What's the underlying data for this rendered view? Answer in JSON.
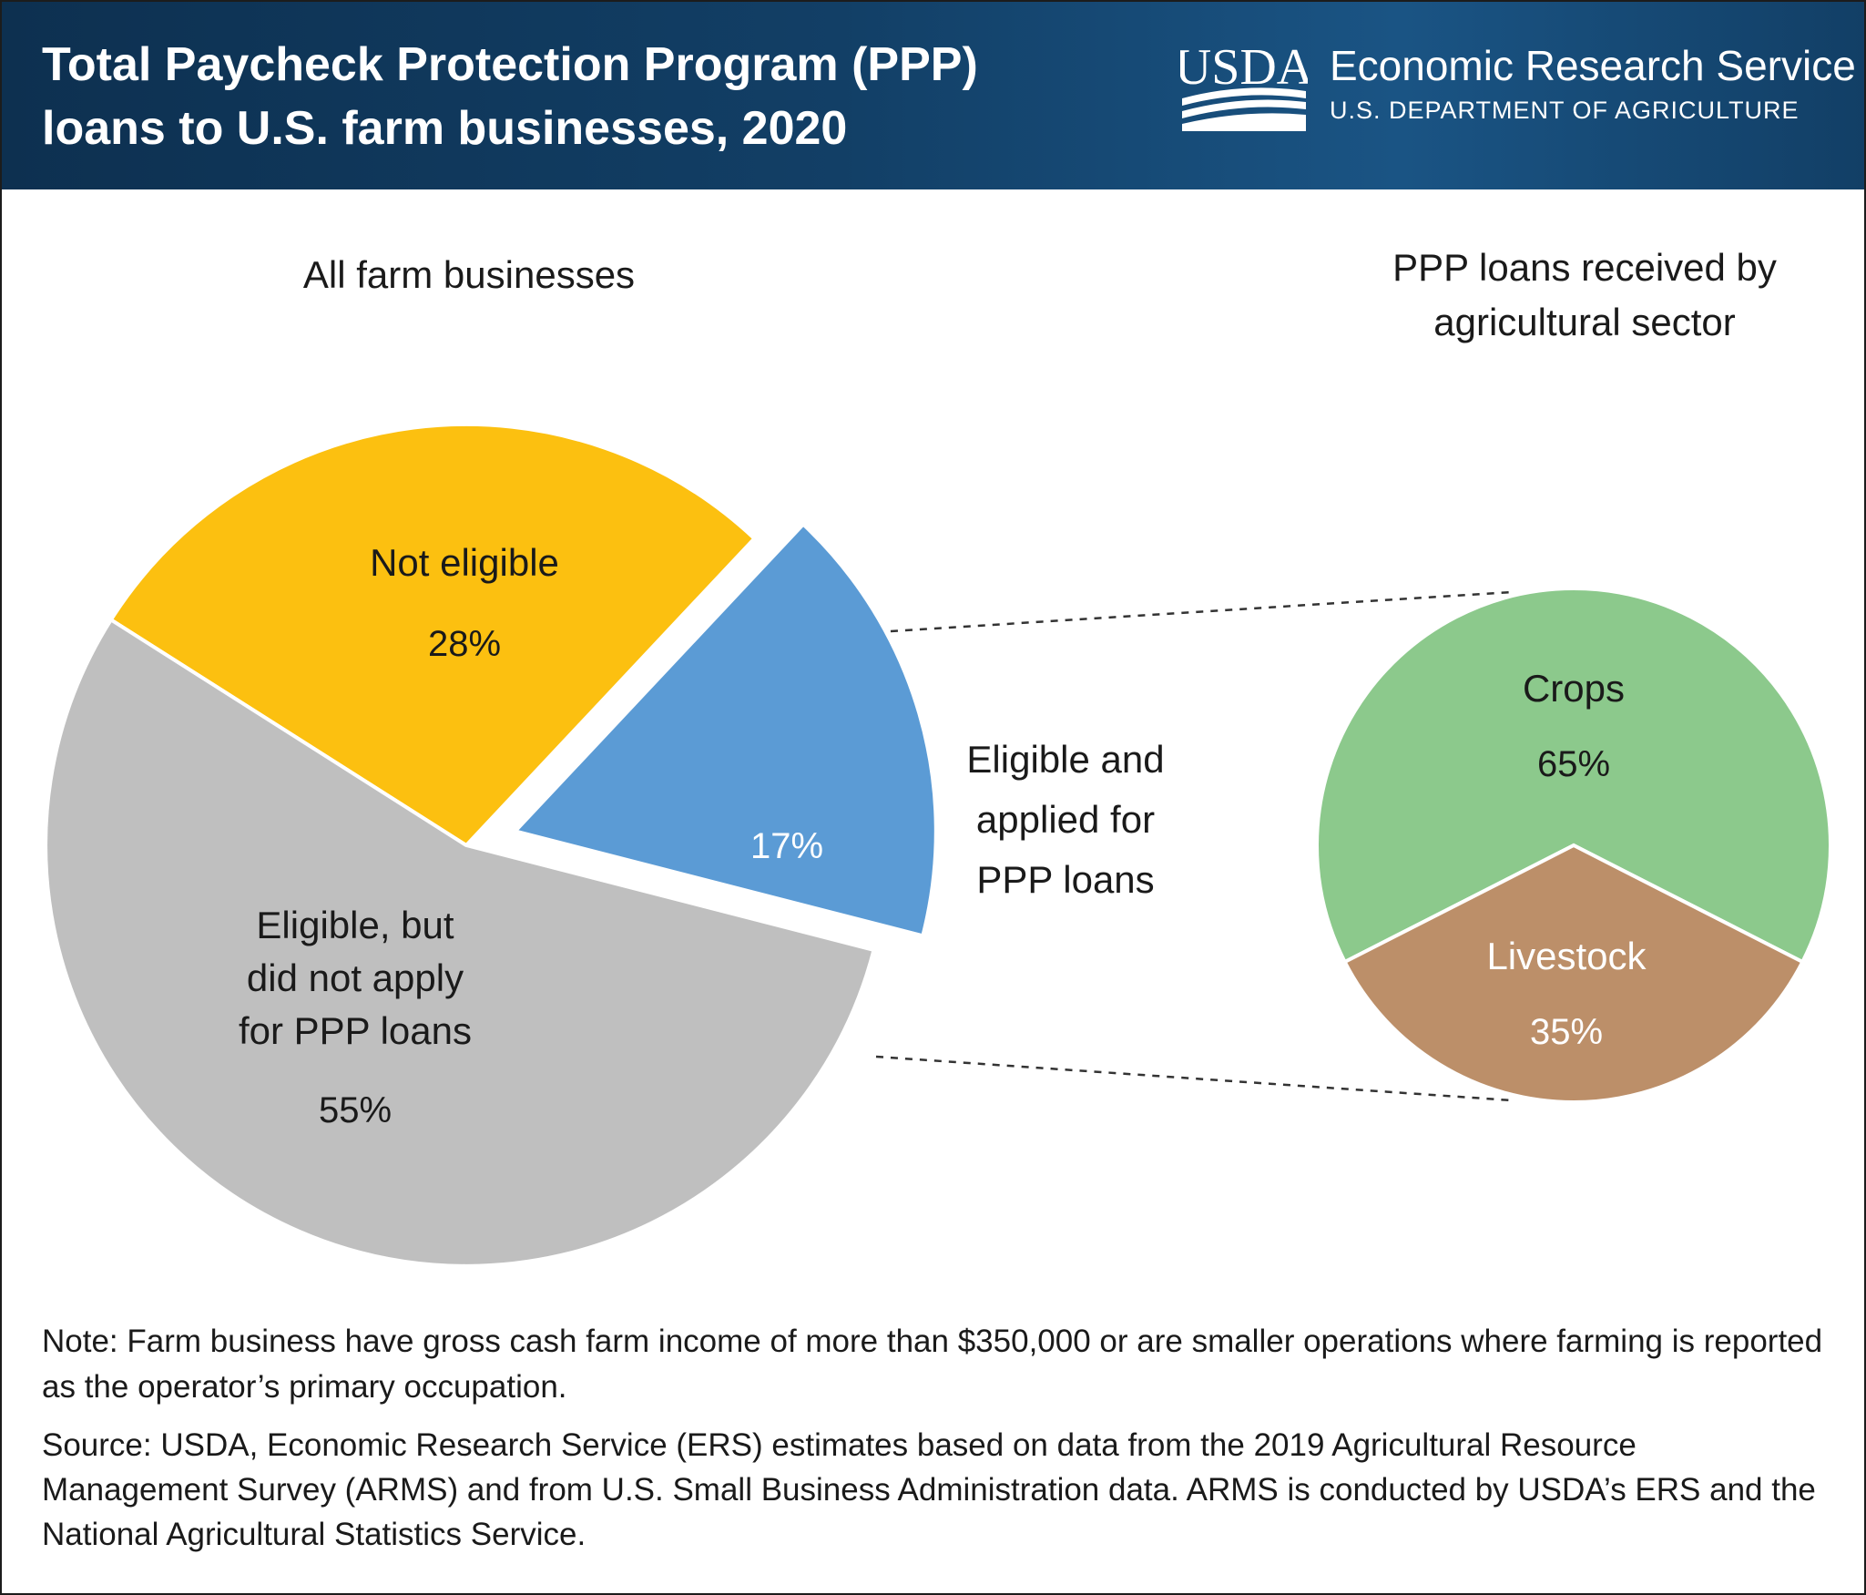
{
  "header": {
    "title_line1": "Total Paycheck Protection Program (PPP)",
    "title_line2": "loans to U.S. farm businesses, 2020",
    "logo_text": "USDA",
    "agency_name": "Economic Research Service",
    "department": "U.S. DEPARTMENT OF AGRICULTURE",
    "header_color": "#123f66"
  },
  "chart_data": [
    {
      "type": "pie",
      "title": "All farm businesses",
      "slices": [
        {
          "label_lines": [
            "Not eligible"
          ],
          "value": 28,
          "value_label": "28%",
          "color": "#fcc010"
        },
        {
          "label_lines": [
            "Eligible and",
            "applied for",
            "PPP loans"
          ],
          "value": 17,
          "value_label": "17%",
          "color": "#5b9bd5",
          "exploded": true
        },
        {
          "label_lines": [
            "Eligible, but",
            "did not apply",
            "for PPP loans"
          ],
          "value": 55,
          "value_label": "55%",
          "color": "#bfbfbf"
        }
      ]
    },
    {
      "type": "pie",
      "title_lines": [
        "PPP loans received by",
        "agricultural sector"
      ],
      "slices": [
        {
          "label_lines": [
            "Crops"
          ],
          "value": 65,
          "value_label": "65%",
          "color": "#8cc98c"
        },
        {
          "label_lines": [
            "Livestock"
          ],
          "value": 35,
          "value_label": "35%",
          "color": "#bc8f69"
        }
      ]
    }
  ],
  "footer": {
    "note": "Note: Farm business have gross cash farm income of more than $350,000 or are smaller operations where farming is reported as the operator’s primary occupation.",
    "source": "Source: USDA, Economic Research Service (ERS) estimates based on data from the 2019 Agricultural Resource Management Survey (ARMS) and from U.S. Small Business Administration data. ARMS is conducted by USDA’s ERS and the National Agricultural Statistics Service."
  }
}
